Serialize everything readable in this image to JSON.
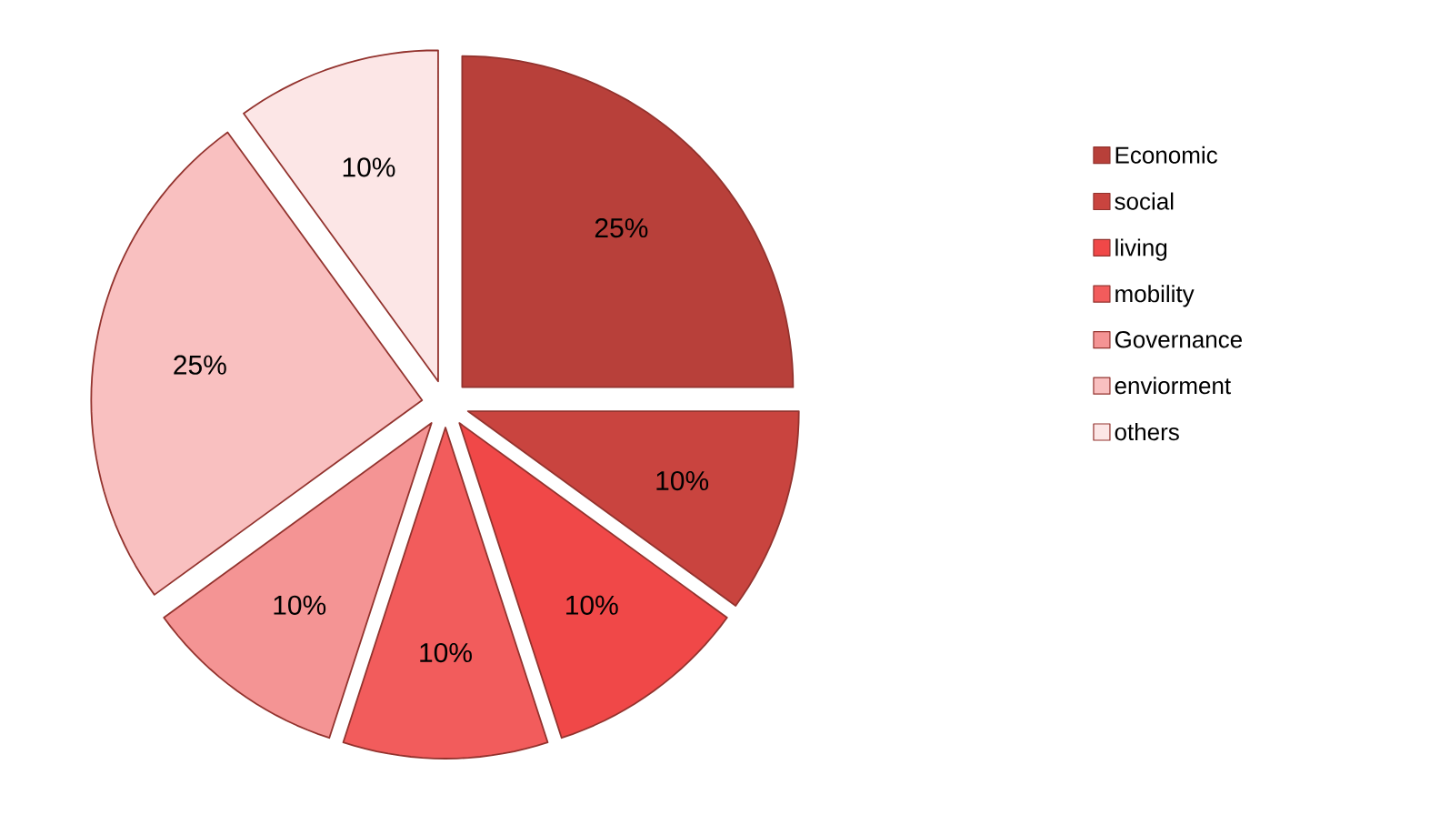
{
  "chart_data": {
    "type": "pie",
    "categories": [
      "Economic",
      "social",
      "living",
      "mobility",
      "Governance",
      "enviorment",
      "others"
    ],
    "values": [
      25,
      10,
      10,
      10,
      10,
      25,
      10
    ],
    "value_labels": [
      "25%",
      "10%",
      "10%",
      "10%",
      "10%",
      "25%",
      "10%"
    ],
    "colors": [
      "#b8403a",
      "#c9443f",
      "#f04848",
      "#f25c5c",
      "#f49494",
      "#f9c0c0",
      "#fce6e6"
    ],
    "legend": "right"
  }
}
